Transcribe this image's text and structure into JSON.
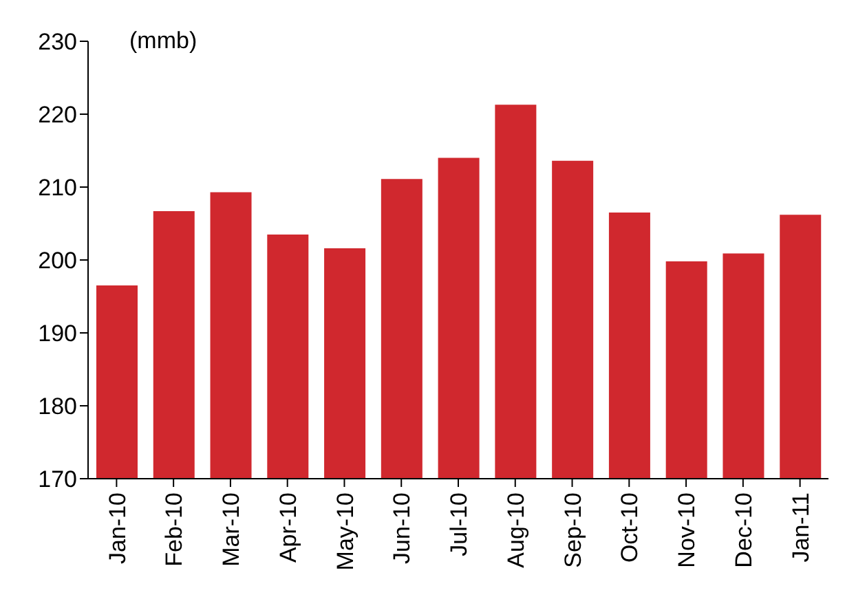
{
  "chart_data": {
    "type": "bar",
    "ylabel": "(mmb)",
    "categories": [
      "Jan-10",
      "Feb-10",
      "Mar-10",
      "Apr-10",
      "May-10",
      "Jun-10",
      "Jul-10",
      "Aug-10",
      "Sep-10",
      "Oct-10",
      "Nov-10",
      "Dec-10",
      "Jan-11"
    ],
    "values": [
      196.5,
      206.7,
      209.3,
      203.5,
      201.6,
      211.1,
      214.0,
      221.3,
      213.6,
      206.5,
      199.8,
      200.9,
      206.2
    ],
    "color": "#d0282e",
    "ylim": [
      170,
      230
    ],
    "yticks": [
      170,
      180,
      190,
      200,
      210,
      220,
      230
    ],
    "grid": false
  }
}
